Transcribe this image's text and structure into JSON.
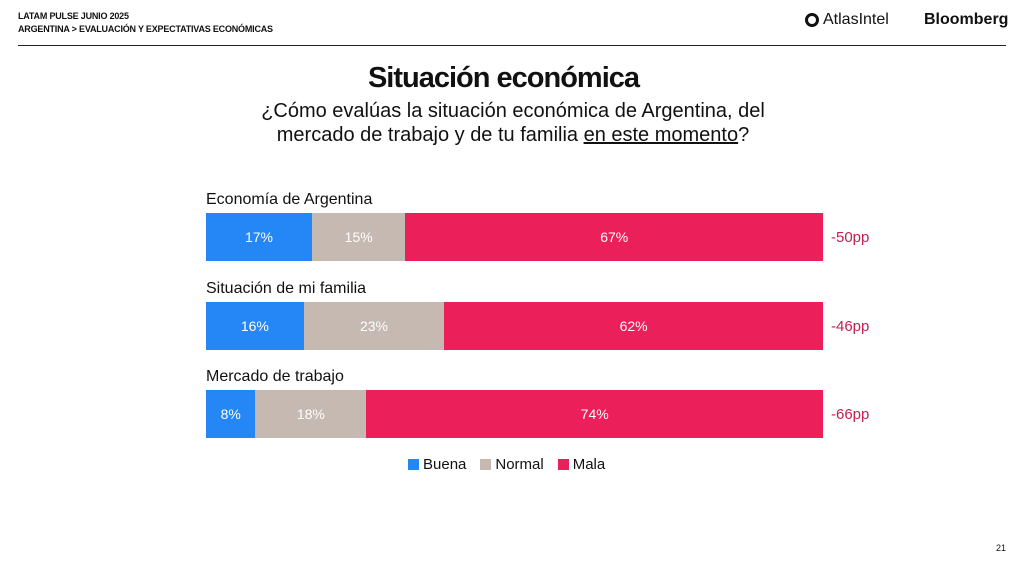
{
  "header": {
    "line1": "LATAM PULSE JUNIO 2025",
    "line2": "ARGENTINA > EVALUACIÓN Y EXPECTATIVAS ECONÓMICAS",
    "logo_atlas": "AtlasIntel",
    "logo_bloomberg": "Bloomberg"
  },
  "page_number": "21",
  "chart_data": {
    "type": "bar",
    "orientation": "horizontal",
    "stacked": true,
    "title": "Situación económica",
    "subtitle_pre": "¿Cómo evalúas la situación económica de Argentina, del mercado de trabajo y de tu familia ",
    "subtitle_underlined": "en este momento",
    "subtitle_post": "?",
    "categories": [
      "Economía de Argentina",
      "Situación de mi familia",
      "Mercado de trabajo"
    ],
    "series": [
      {
        "name": "Buena",
        "color": "#2586f5",
        "values": [
          17,
          16,
          8
        ],
        "labels": [
          "17%",
          "16%",
          "8%"
        ]
      },
      {
        "name": "Normal",
        "color": "#c5b9b1",
        "values": [
          15,
          23,
          18
        ],
        "labels": [
          "15%",
          "23%",
          "18%"
        ]
      },
      {
        "name": "Mala",
        "color": "#eb1f5a",
        "values": [
          67,
          62,
          74
        ],
        "labels": [
          "67%",
          "62%",
          "74%"
        ]
      }
    ],
    "net": [
      "-50pp",
      "-46pp",
      "-66pp"
    ],
    "legend_position": "bottom"
  }
}
